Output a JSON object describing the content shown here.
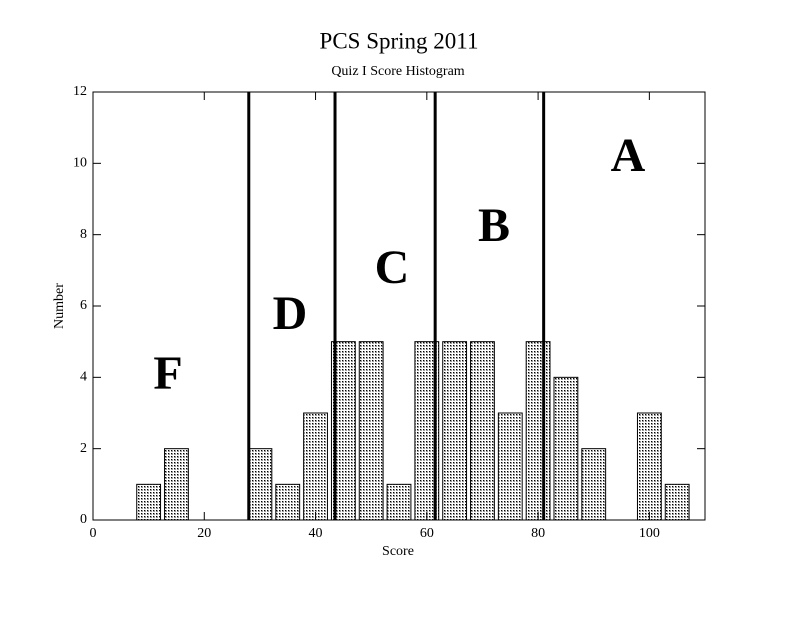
{
  "chart_data": {
    "type": "histogram",
    "title": "PCS Spring 2011",
    "subtitle": "Quiz I Score Histogram",
    "x_label": "Score",
    "y_label": "Number",
    "bins": [
      7.5,
      12.5,
      17.5,
      22.5,
      27.5,
      32.5,
      37.5,
      42.5,
      47.5,
      52.5,
      57.5,
      62.5,
      67.5,
      72.5,
      77.5,
      82.5,
      87.5,
      92.5,
      97.5,
      102.5,
      107.5
    ],
    "values": [
      1,
      2,
      0,
      0,
      2,
      1,
      3,
      5,
      5,
      1,
      5,
      5,
      5,
      3,
      5,
      4,
      2,
      0,
      3,
      1
    ],
    "color": "#9a9a9a",
    "cutoffs": [
      28,
      43.5,
      61.5,
      81
    ],
    "annotations": [
      "F",
      "D",
      "C",
      "B",
      "A"
    ],
    "xlim": [
      0,
      110
    ],
    "ylim": [
      0,
      12
    ],
    "xticks": [
      0,
      20,
      40,
      60,
      80,
      100
    ],
    "yticks": [
      0,
      2,
      4,
      6,
      8,
      10,
      12
    ]
  }
}
